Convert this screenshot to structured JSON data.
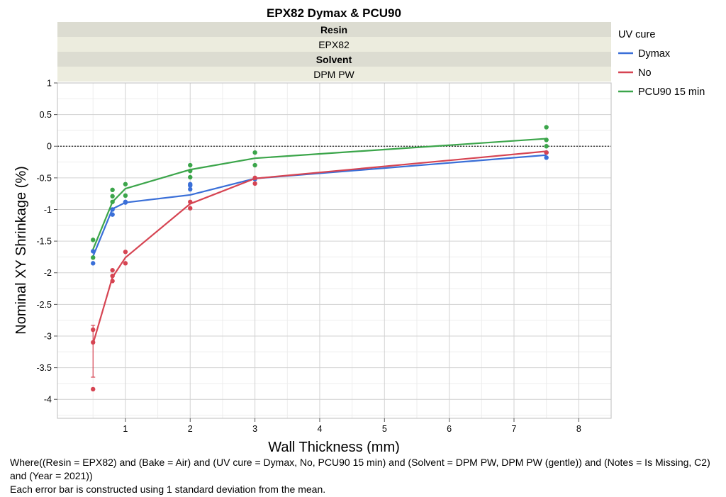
{
  "chart_data": {
    "type": "line",
    "title": "EPX82 Dymax & PCU90",
    "headers": [
      {
        "label": "Resin",
        "value": "EPX82"
      },
      {
        "label": "Solvent",
        "value": "DPM PW"
      }
    ],
    "xlabel": "Wall Thickness (mm)",
    "ylabel": "Nominal XY Shrinkage (%)",
    "xlim": [
      -0.05,
      8.5
    ],
    "ylim": [
      -4.3,
      1
    ],
    "x_ticks": [
      1,
      2,
      3,
      4,
      5,
      6,
      7,
      8
    ],
    "y_ticks": [
      1,
      0.5,
      0,
      -0.5,
      -1,
      -1.5,
      -2,
      -2.5,
      -3,
      -3.5,
      -4
    ],
    "y_tick_labels": [
      "1",
      "0.5",
      "0",
      "-0.5",
      "-1",
      "-1.5",
      "-2",
      "-2.5",
      "-3",
      "-3.5",
      "-4"
    ],
    "reference_line_y": 0,
    "grid": true,
    "legend": {
      "title": "UV cure",
      "position": "right-top"
    },
    "series": [
      {
        "name": "Dymax",
        "color": "#3a6fd8",
        "means": {
          "x": [
            0.5,
            0.8,
            1,
            2,
            3,
            7.5
          ],
          "y": [
            -1.74,
            -0.99,
            -0.89,
            -0.77,
            -0.51,
            -0.14
          ]
        },
        "points": {
          "x": [
            0.5,
            0.5,
            0.8,
            0.8,
            1,
            1,
            2,
            2,
            2,
            3,
            7.5,
            7.5
          ],
          "y": [
            -1.66,
            -1.85,
            -1.0,
            -1.08,
            -0.88,
            -0.89,
            -0.6,
            -0.62,
            -0.68,
            -0.52,
            -0.1,
            -0.18
          ]
        }
      },
      {
        "name": "No",
        "color": "#d64452",
        "means": {
          "x": [
            0.5,
            0.8,
            1,
            2,
            3,
            7.5
          ],
          "y": [
            -3.12,
            -2.07,
            -1.76,
            -0.91,
            -0.51,
            -0.08
          ]
        },
        "points": {
          "x": [
            0.5,
            0.5,
            0.5,
            0.8,
            0.8,
            0.8,
            1,
            1,
            2,
            2,
            3,
            3,
            7.5
          ],
          "y": [
            -2.9,
            -3.1,
            -3.84,
            -1.96,
            -2.05,
            -2.13,
            -1.67,
            -1.85,
            -0.88,
            -0.98,
            -0.5,
            -0.59,
            -0.1
          ]
        },
        "error": {
          "x": 0.5,
          "low": -3.65,
          "high": -2.83
        }
      },
      {
        "name": "PCU90 15 min",
        "color": "#3ba54a",
        "means": {
          "x": [
            0.5,
            0.8,
            1,
            2,
            3,
            7.5
          ],
          "y": [
            -1.63,
            -0.88,
            -0.67,
            -0.37,
            -0.19,
            0.12
          ]
        },
        "points": {
          "x": [
            0.5,
            0.5,
            0.8,
            0.8,
            0.8,
            1,
            1,
            2,
            2,
            2,
            3,
            3,
            7.5,
            7.5,
            7.5
          ],
          "y": [
            -1.48,
            -1.76,
            -0.69,
            -0.79,
            -0.88,
            -0.6,
            -0.78,
            -0.3,
            -0.39,
            -0.49,
            -0.1,
            -0.3,
            0.3,
            0.1,
            0.0
          ]
        }
      }
    ]
  },
  "footer": {
    "where_clause": "Where((Resin = EPX82) and (Bake = Air) and (UV cure = Dymax, No, PCU90 15 min) and (Solvent = DPM PW, DPM PW (gentle)) and (Notes = Is Missing, C2) and (Year = 2021))",
    "error_note": "Each error bar is constructed using 1 standard deviation from the mean."
  }
}
